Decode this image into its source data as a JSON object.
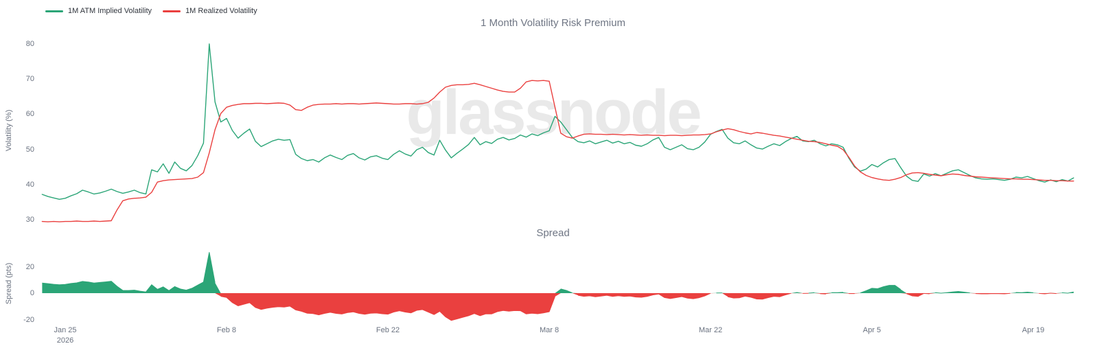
{
  "watermark": "glassnode",
  "colors": {
    "implied_green": "#2ba577",
    "realized_red": "#ea403f",
    "title_gray": "#6f7684",
    "axis_gray": "#6a7280",
    "watermark_gray": "#e9e9e9"
  },
  "x_axis": {
    "labels": [
      {
        "text": "Jan 25",
        "sub": "2026",
        "day": 0
      },
      {
        "text": "Feb 8",
        "day": 14
      },
      {
        "text": "Feb 22",
        "day": 28
      },
      {
        "text": "Mar 8",
        "day": 42
      },
      {
        "text": "Mar 22",
        "day": 56
      },
      {
        "text": "Apr 5",
        "day": 70
      },
      {
        "text": "Apr 19",
        "day": 84
      }
    ]
  },
  "chart_data": [
    {
      "type": "line",
      "title": "1 Month Volatility Risk Premium",
      "ylabel": "Volatility (%)",
      "yticks": [
        80,
        70,
        60,
        50,
        40,
        30
      ],
      "ylim": [
        28,
        82
      ],
      "grid": false,
      "legend_position": "top-left",
      "x_unit": "days since 2026-01-25",
      "x_start": -2,
      "x_step": 0.5,
      "series": [
        {
          "key": "implied-volatility",
          "name": "1M ATM Implied Volatility",
          "color": "#2ba577",
          "values": [
            37.2,
            36.6,
            36.2,
            35.8,
            36.1,
            36.8,
            37.4,
            38.4,
            37.9,
            37.3,
            37.6,
            38.1,
            38.7,
            38.0,
            37.5,
            37.9,
            38.4,
            37.7,
            37.3,
            44.2,
            43.6,
            45.9,
            43.2,
            46.4,
            44.6,
            43.9,
            45.4,
            48.2,
            51.8,
            80.0,
            63.5,
            57.8,
            58.8,
            55.4,
            53.2,
            54.6,
            55.8,
            52.3,
            50.8,
            51.6,
            52.4,
            52.9,
            52.6,
            52.8,
            48.6,
            47.4,
            46.8,
            47.1,
            46.4,
            47.6,
            48.4,
            47.7,
            47.1,
            48.3,
            48.8,
            47.6,
            47.0,
            47.9,
            48.2,
            47.5,
            47.1,
            48.6,
            49.6,
            48.7,
            48.1,
            49.9,
            50.6,
            49.1,
            48.4,
            52.6,
            49.8,
            47.6,
            48.9,
            50.1,
            51.4,
            53.4,
            51.3,
            52.2,
            51.7,
            52.9,
            53.4,
            52.7,
            53.1,
            54.1,
            53.5,
            54.4,
            53.9,
            54.7,
            55.3,
            59.4,
            57.8,
            55.6,
            53.4,
            52.2,
            51.9,
            52.4,
            51.6,
            52.1,
            52.6,
            51.8,
            52.3,
            51.6,
            52.0,
            51.2,
            50.9,
            51.6,
            52.7,
            53.4,
            50.6,
            49.9,
            50.6,
            51.3,
            50.2,
            49.9,
            50.6,
            52.1,
            54.3,
            55.1,
            55.7,
            53.2,
            51.9,
            51.6,
            52.4,
            51.3,
            50.4,
            50.1,
            50.9,
            51.6,
            51.1,
            52.2,
            53.1,
            53.7,
            52.4,
            52.2,
            52.6,
            51.6,
            51.0,
            51.6,
            51.3,
            50.6,
            47.5,
            45.0,
            43.8,
            44.4,
            45.7,
            45.0,
            46.2,
            47.1,
            47.4,
            44.8,
            42.4,
            41.2,
            40.9,
            43.0,
            42.4,
            43.1,
            42.5,
            43.2,
            43.9,
            44.2,
            43.4,
            42.6,
            41.9,
            41.6,
            41.5,
            41.6,
            41.4,
            41.2,
            41.5,
            42.1,
            41.9,
            42.3,
            41.7,
            41.1,
            40.7,
            41.3,
            40.8,
            41.4,
            41.0,
            41.9
          ]
        },
        {
          "key": "realized-volatility",
          "name": "1M Realized Volatility",
          "color": "#ea403f",
          "values": [
            29.5,
            29.4,
            29.5,
            29.4,
            29.5,
            29.5,
            29.6,
            29.5,
            29.5,
            29.6,
            29.5,
            29.6,
            29.7,
            32.8,
            35.4,
            35.9,
            36.1,
            36.2,
            36.4,
            37.8,
            40.7,
            41.1,
            41.3,
            41.4,
            41.5,
            41.6,
            41.7,
            42.1,
            43.4,
            49.0,
            55.6,
            60.2,
            62.0,
            62.5,
            62.8,
            63.0,
            63.0,
            63.1,
            63.1,
            63.0,
            63.1,
            63.2,
            63.1,
            62.6,
            61.3,
            61.1,
            62.0,
            62.6,
            62.8,
            62.9,
            62.9,
            63.0,
            62.9,
            63.0,
            63.0,
            62.9,
            63.0,
            63.1,
            63.2,
            63.1,
            63.0,
            62.9,
            62.9,
            63.0,
            63.0,
            62.9,
            63.0,
            63.4,
            64.6,
            66.3,
            67.7,
            68.2,
            68.4,
            68.4,
            68.5,
            68.8,
            68.4,
            67.9,
            67.4,
            66.9,
            66.5,
            66.3,
            66.3,
            67.4,
            69.2,
            69.6,
            69.5,
            69.6,
            69.4,
            62.0,
            54.6,
            53.6,
            53.2,
            53.8,
            54.3,
            54.4,
            54.3,
            54.3,
            54.2,
            54.3,
            54.2,
            54.1,
            54.2,
            54.1,
            54.0,
            54.1,
            54.0,
            54.0,
            53.9,
            54.0,
            54.0,
            53.9,
            54.0,
            54.1,
            54.1,
            54.2,
            54.4,
            55.0,
            55.5,
            55.9,
            55.6,
            55.1,
            54.7,
            54.4,
            54.8,
            54.6,
            54.3,
            54.0,
            53.8,
            53.5,
            53.2,
            52.9,
            52.6,
            52.3,
            52.2,
            52.0,
            51.6,
            51.2,
            50.9,
            49.9,
            47.8,
            45.3,
            43.6,
            42.6,
            42.0,
            41.6,
            41.3,
            41.2,
            41.5,
            42.0,
            42.8,
            43.3,
            43.4,
            43.2,
            42.9,
            42.7,
            42.5,
            42.8,
            43.0,
            42.9,
            42.6,
            42.4,
            42.2,
            42.1,
            42.0,
            41.9,
            41.8,
            41.7,
            41.6,
            41.6,
            41.5,
            41.5,
            41.4,
            41.3,
            41.2,
            41.2,
            41.1,
            41.1,
            41.0,
            41.0
          ]
        }
      ]
    },
    {
      "type": "area",
      "title": "Spread",
      "ylabel": "Spread (pts)",
      "yticks": [
        20,
        0,
        -20
      ],
      "ylim": [
        -24,
        32
      ],
      "grid": false,
      "derived": "spread = implied volatility - realized volatility (pts)",
      "positive_color": "#2ba577",
      "negative_color": "#ea403f"
    }
  ]
}
